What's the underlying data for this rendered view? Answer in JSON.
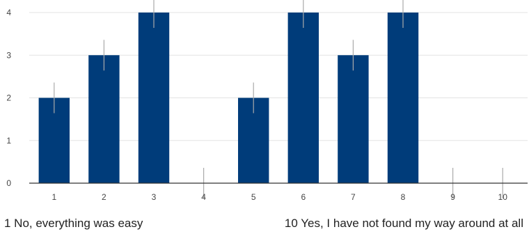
{
  "chart_data": {
    "type": "bar",
    "categories": [
      "1",
      "2",
      "3",
      "4",
      "5",
      "6",
      "7",
      "8",
      "9",
      "10"
    ],
    "values": [
      2,
      3,
      4,
      0,
      2,
      4,
      3,
      4,
      0,
      0
    ],
    "ylim": [
      0,
      4
    ],
    "yticks": [
      "0",
      "1",
      "2",
      "3",
      "4"
    ],
    "grid": true,
    "bar_color": "#003c7a",
    "error_bar_color": "#aaaaaa"
  },
  "footer": {
    "left_label": "1 No, everything was easy",
    "right_label": "10 Yes, I have not found my way around at all"
  }
}
